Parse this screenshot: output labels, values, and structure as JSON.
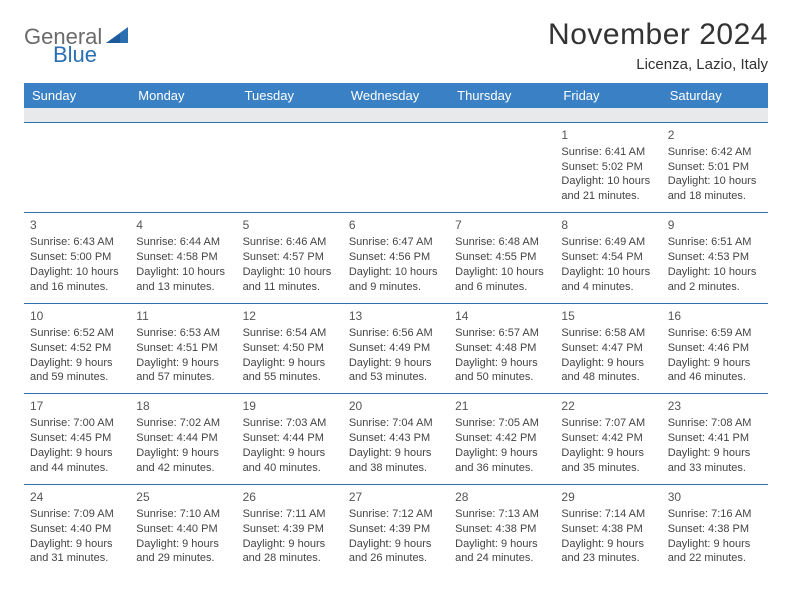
{
  "brand": {
    "general": "General",
    "blue": "Blue"
  },
  "title": "November 2024",
  "location": "Licenza, Lazio, Italy",
  "colors": {
    "header_bg": "#3a80c4",
    "header_text": "#ffffff",
    "rule": "#2f6fae",
    "logo_gray": "#6b6b6b",
    "logo_blue": "#2b6fb3",
    "spacer_bg": "#e7e9eb",
    "text": "#444444"
  },
  "days_of_week": [
    "Sunday",
    "Monday",
    "Tuesday",
    "Wednesday",
    "Thursday",
    "Friday",
    "Saturday"
  ],
  "weeks": [
    [
      {
        "n": "",
        "empty": true
      },
      {
        "n": "",
        "empty": true
      },
      {
        "n": "",
        "empty": true
      },
      {
        "n": "",
        "empty": true
      },
      {
        "n": "",
        "empty": true
      },
      {
        "n": "1",
        "sunrise": "Sunrise: 6:41 AM",
        "sunset": "Sunset: 5:02 PM",
        "daylight": "Daylight: 10 hours and 21 minutes."
      },
      {
        "n": "2",
        "sunrise": "Sunrise: 6:42 AM",
        "sunset": "Sunset: 5:01 PM",
        "daylight": "Daylight: 10 hours and 18 minutes."
      }
    ],
    [
      {
        "n": "3",
        "sunrise": "Sunrise: 6:43 AM",
        "sunset": "Sunset: 5:00 PM",
        "daylight": "Daylight: 10 hours and 16 minutes."
      },
      {
        "n": "4",
        "sunrise": "Sunrise: 6:44 AM",
        "sunset": "Sunset: 4:58 PM",
        "daylight": "Daylight: 10 hours and 13 minutes."
      },
      {
        "n": "5",
        "sunrise": "Sunrise: 6:46 AM",
        "sunset": "Sunset: 4:57 PM",
        "daylight": "Daylight: 10 hours and 11 minutes."
      },
      {
        "n": "6",
        "sunrise": "Sunrise: 6:47 AM",
        "sunset": "Sunset: 4:56 PM",
        "daylight": "Daylight: 10 hours and 9 minutes."
      },
      {
        "n": "7",
        "sunrise": "Sunrise: 6:48 AM",
        "sunset": "Sunset: 4:55 PM",
        "daylight": "Daylight: 10 hours and 6 minutes."
      },
      {
        "n": "8",
        "sunrise": "Sunrise: 6:49 AM",
        "sunset": "Sunset: 4:54 PM",
        "daylight": "Daylight: 10 hours and 4 minutes."
      },
      {
        "n": "9",
        "sunrise": "Sunrise: 6:51 AM",
        "sunset": "Sunset: 4:53 PM",
        "daylight": "Daylight: 10 hours and 2 minutes."
      }
    ],
    [
      {
        "n": "10",
        "sunrise": "Sunrise: 6:52 AM",
        "sunset": "Sunset: 4:52 PM",
        "daylight": "Daylight: 9 hours and 59 minutes."
      },
      {
        "n": "11",
        "sunrise": "Sunrise: 6:53 AM",
        "sunset": "Sunset: 4:51 PM",
        "daylight": "Daylight: 9 hours and 57 minutes."
      },
      {
        "n": "12",
        "sunrise": "Sunrise: 6:54 AM",
        "sunset": "Sunset: 4:50 PM",
        "daylight": "Daylight: 9 hours and 55 minutes."
      },
      {
        "n": "13",
        "sunrise": "Sunrise: 6:56 AM",
        "sunset": "Sunset: 4:49 PM",
        "daylight": "Daylight: 9 hours and 53 minutes."
      },
      {
        "n": "14",
        "sunrise": "Sunrise: 6:57 AM",
        "sunset": "Sunset: 4:48 PM",
        "daylight": "Daylight: 9 hours and 50 minutes."
      },
      {
        "n": "15",
        "sunrise": "Sunrise: 6:58 AM",
        "sunset": "Sunset: 4:47 PM",
        "daylight": "Daylight: 9 hours and 48 minutes."
      },
      {
        "n": "16",
        "sunrise": "Sunrise: 6:59 AM",
        "sunset": "Sunset: 4:46 PM",
        "daylight": "Daylight: 9 hours and 46 minutes."
      }
    ],
    [
      {
        "n": "17",
        "sunrise": "Sunrise: 7:00 AM",
        "sunset": "Sunset: 4:45 PM",
        "daylight": "Daylight: 9 hours and 44 minutes."
      },
      {
        "n": "18",
        "sunrise": "Sunrise: 7:02 AM",
        "sunset": "Sunset: 4:44 PM",
        "daylight": "Daylight: 9 hours and 42 minutes."
      },
      {
        "n": "19",
        "sunrise": "Sunrise: 7:03 AM",
        "sunset": "Sunset: 4:44 PM",
        "daylight": "Daylight: 9 hours and 40 minutes."
      },
      {
        "n": "20",
        "sunrise": "Sunrise: 7:04 AM",
        "sunset": "Sunset: 4:43 PM",
        "daylight": "Daylight: 9 hours and 38 minutes."
      },
      {
        "n": "21",
        "sunrise": "Sunrise: 7:05 AM",
        "sunset": "Sunset: 4:42 PM",
        "daylight": "Daylight: 9 hours and 36 minutes."
      },
      {
        "n": "22",
        "sunrise": "Sunrise: 7:07 AM",
        "sunset": "Sunset: 4:42 PM",
        "daylight": "Daylight: 9 hours and 35 minutes."
      },
      {
        "n": "23",
        "sunrise": "Sunrise: 7:08 AM",
        "sunset": "Sunset: 4:41 PM",
        "daylight": "Daylight: 9 hours and 33 minutes."
      }
    ],
    [
      {
        "n": "24",
        "sunrise": "Sunrise: 7:09 AM",
        "sunset": "Sunset: 4:40 PM",
        "daylight": "Daylight: 9 hours and 31 minutes."
      },
      {
        "n": "25",
        "sunrise": "Sunrise: 7:10 AM",
        "sunset": "Sunset: 4:40 PM",
        "daylight": "Daylight: 9 hours and 29 minutes."
      },
      {
        "n": "26",
        "sunrise": "Sunrise: 7:11 AM",
        "sunset": "Sunset: 4:39 PM",
        "daylight": "Daylight: 9 hours and 28 minutes."
      },
      {
        "n": "27",
        "sunrise": "Sunrise: 7:12 AM",
        "sunset": "Sunset: 4:39 PM",
        "daylight": "Daylight: 9 hours and 26 minutes."
      },
      {
        "n": "28",
        "sunrise": "Sunrise: 7:13 AM",
        "sunset": "Sunset: 4:38 PM",
        "daylight": "Daylight: 9 hours and 24 minutes."
      },
      {
        "n": "29",
        "sunrise": "Sunrise: 7:14 AM",
        "sunset": "Sunset: 4:38 PM",
        "daylight": "Daylight: 9 hours and 23 minutes."
      },
      {
        "n": "30",
        "sunrise": "Sunrise: 7:16 AM",
        "sunset": "Sunset: 4:38 PM",
        "daylight": "Daylight: 9 hours and 22 minutes."
      }
    ]
  ]
}
